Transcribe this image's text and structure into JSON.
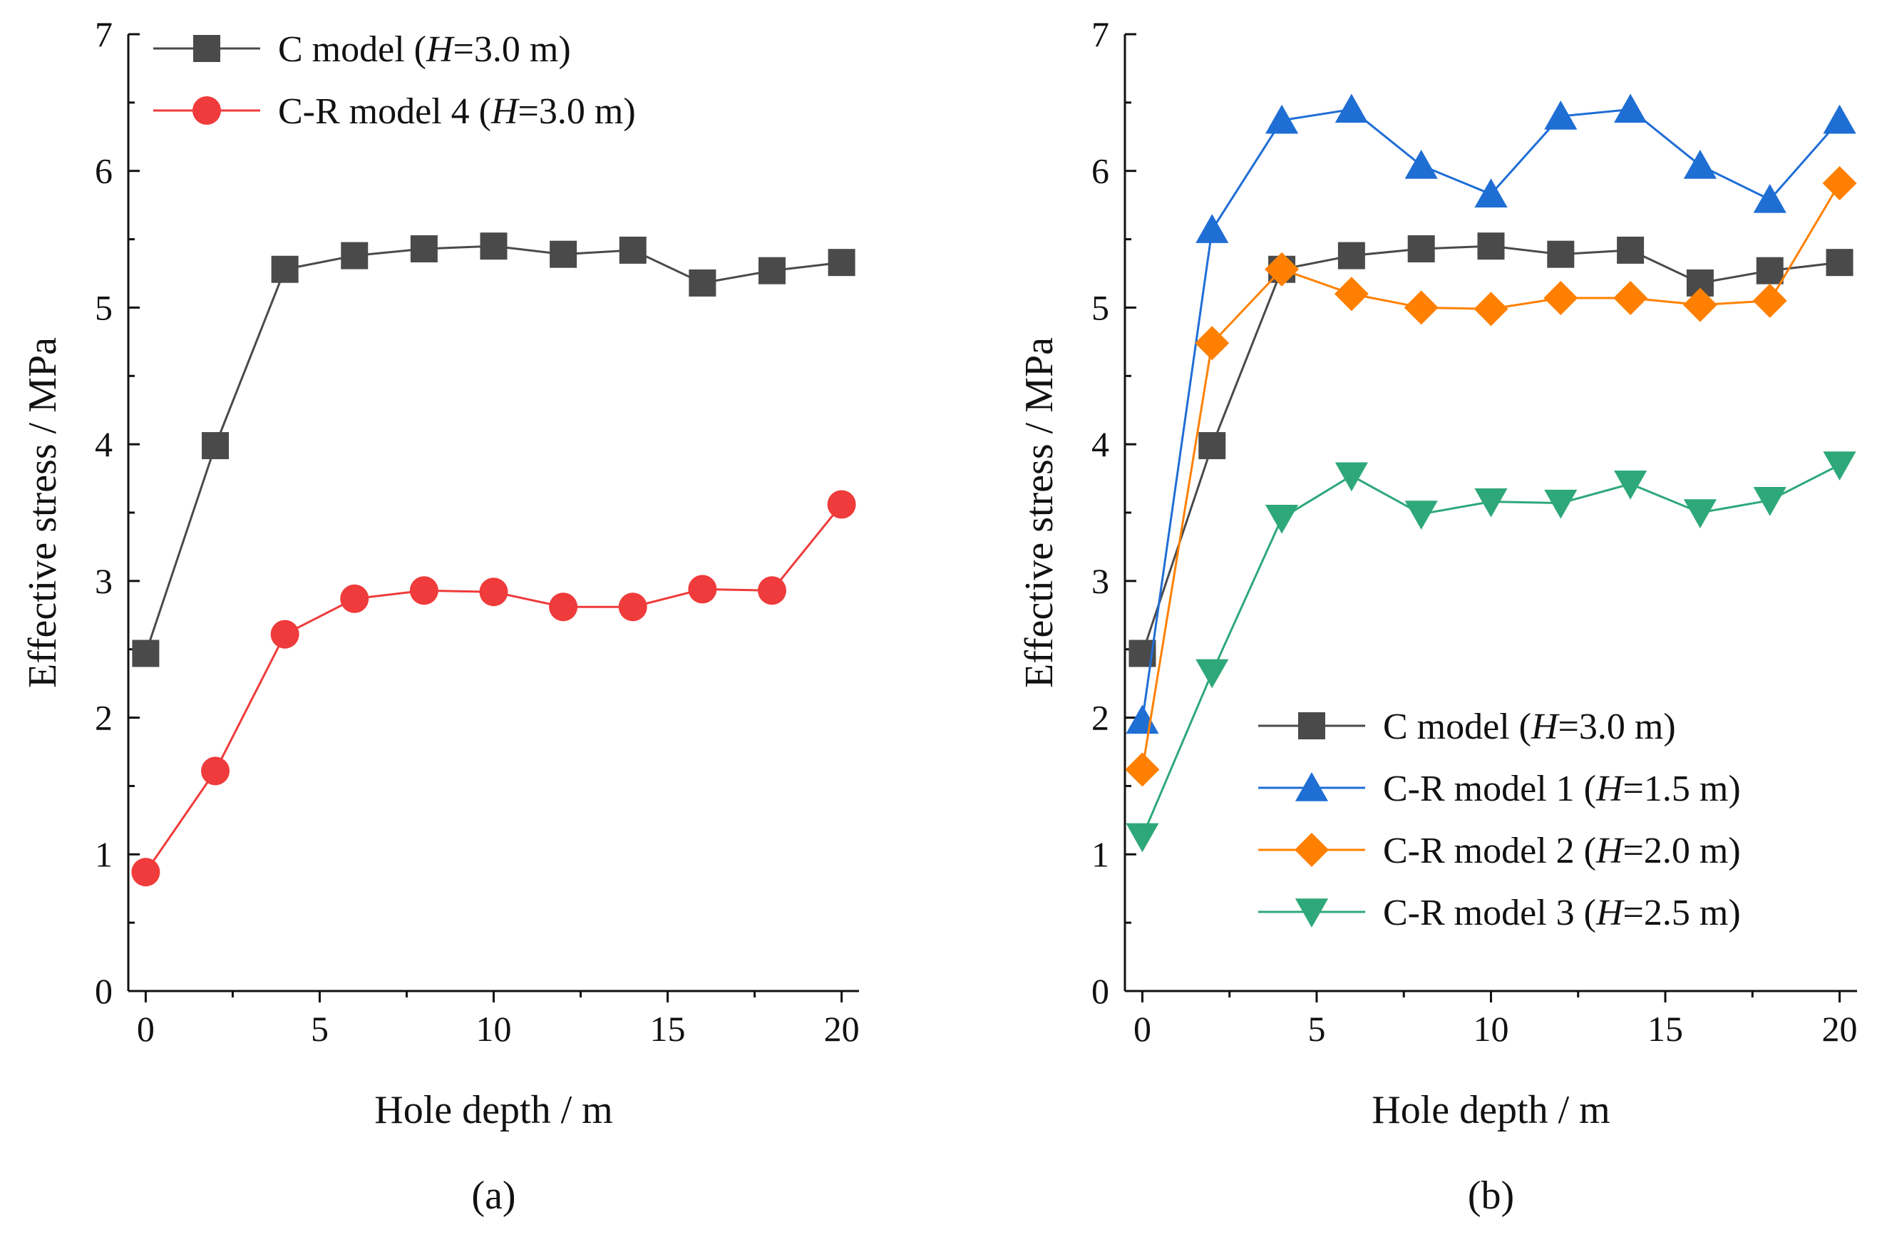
{
  "chart_data": [
    {
      "type": "line",
      "panel_label": "(a)",
      "xlabel": "Hole depth / m",
      "ylabel": "Effective stress / MPa",
      "xlim": [
        -0.5,
        20.5
      ],
      "ylim": [
        0,
        7
      ],
      "x_ticks": [
        0,
        5,
        10,
        15,
        20
      ],
      "y_ticks": [
        0,
        1,
        2,
        3,
        4,
        5,
        6,
        7
      ],
      "legend_position": "top-left",
      "x": [
        0,
        2,
        4,
        6,
        8,
        10,
        12,
        14,
        16,
        18,
        20
      ],
      "series": [
        {
          "legend_prefix": "C model (",
          "legend_var": "H",
          "legend_suffix": "=3.0 m)",
          "color": "#4a4a4a",
          "marker": "square",
          "values": [
            2.47,
            3.99,
            5.28,
            5.38,
            5.43,
            5.45,
            5.39,
            5.42,
            5.18,
            5.27,
            5.33
          ]
        },
        {
          "legend_prefix": "C-R model 4 (",
          "legend_var": "H",
          "legend_suffix": "=3.0 m)",
          "color": "#ef3b3b",
          "marker": "circle",
          "values": [
            0.87,
            1.61,
            2.61,
            2.87,
            2.93,
            2.92,
            2.81,
            2.81,
            2.94,
            2.93,
            3.56
          ]
        }
      ]
    },
    {
      "type": "line",
      "panel_label": "(b)",
      "xlabel": "Hole depth / m",
      "ylabel": "Effective stress / MPa",
      "xlim": [
        -0.5,
        20.5
      ],
      "ylim": [
        0,
        7
      ],
      "x_ticks": [
        0,
        5,
        10,
        15,
        20
      ],
      "y_ticks": [
        0,
        1,
        2,
        3,
        4,
        5,
        6,
        7
      ],
      "legend_position": "bottom-right",
      "x": [
        0,
        2,
        4,
        6,
        8,
        10,
        12,
        14,
        16,
        18,
        20
      ],
      "series": [
        {
          "legend_prefix": "C model (",
          "legend_var": "H",
          "legend_suffix": "=3.0 m)",
          "color": "#4a4a4a",
          "marker": "square",
          "values": [
            2.47,
            3.99,
            5.28,
            5.38,
            5.43,
            5.45,
            5.39,
            5.42,
            5.18,
            5.27,
            5.33
          ]
        },
        {
          "legend_prefix": "C-R model 1 (",
          "legend_var": "H",
          "legend_suffix": "=1.5 m)",
          "color": "#1f6ed4",
          "marker": "triangle-up",
          "values": [
            1.98,
            5.57,
            6.37,
            6.45,
            6.04,
            5.83,
            6.4,
            6.45,
            6.04,
            5.79,
            6.37
          ]
        },
        {
          "legend_prefix": "C-R model 2 (",
          "legend_var": "H",
          "legend_suffix": "=2.0 m)",
          "color": "#ff8000",
          "marker": "diamond",
          "values": [
            1.62,
            4.74,
            5.28,
            5.1,
            5.0,
            4.99,
            5.07,
            5.07,
            5.02,
            5.05,
            5.91
          ]
        },
        {
          "legend_prefix": "C-R model 3 (",
          "legend_var": "H",
          "legend_suffix": "=2.5 m)",
          "color": "#2ea87a",
          "marker": "triangle-down",
          "values": [
            1.13,
            2.33,
            3.46,
            3.77,
            3.49,
            3.58,
            3.57,
            3.71,
            3.5,
            3.59,
            3.85
          ]
        }
      ]
    }
  ]
}
